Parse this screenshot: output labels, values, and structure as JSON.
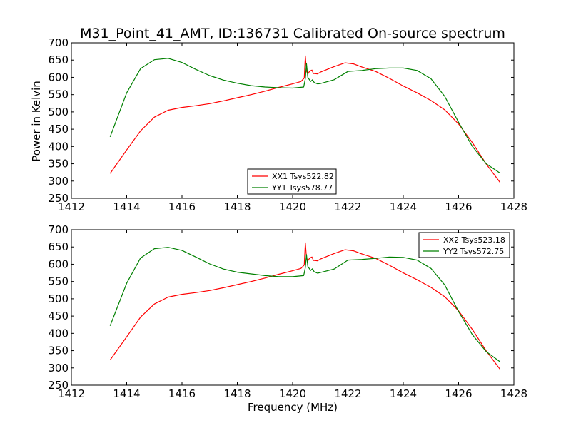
{
  "figure": {
    "title": "M31_Point_41_AMT, ID:136731 Calibrated On-source spectrum",
    "xlabel": "Frequency (MHz)",
    "ylabel": "Power in Kelvin"
  },
  "chart_data": [
    {
      "type": "line",
      "title": "M31_Point_41_AMT, ID:136731 Calibrated On-source spectrum",
      "xlabel": "",
      "ylabel": "Power in Kelvin",
      "xlim": [
        1412,
        1428
      ],
      "ylim": [
        250,
        700
      ],
      "xticks": [
        1412,
        1414,
        1416,
        1418,
        1420,
        1422,
        1424,
        1426,
        1428
      ],
      "yticks": [
        250,
        300,
        350,
        400,
        450,
        500,
        550,
        600,
        650,
        700
      ],
      "grid": false,
      "legend_position": "lower-center",
      "series": [
        {
          "name": "XX1 Tsys522.82",
          "color": "#ff0000",
          "x": [
            1413.4,
            1414.0,
            1414.5,
            1415.0,
            1415.5,
            1416.0,
            1416.5,
            1417.0,
            1417.5,
            1418.0,
            1418.5,
            1419.0,
            1419.5,
            1420.0,
            1420.3,
            1420.42,
            1420.46,
            1420.5,
            1420.55,
            1420.62,
            1420.7,
            1420.75,
            1420.8,
            1420.9,
            1421.0,
            1421.5,
            1421.9,
            1422.2,
            1422.5,
            1423.0,
            1423.5,
            1424.0,
            1424.5,
            1425.0,
            1425.5,
            1426.0,
            1426.5,
            1427.0,
            1427.5
          ],
          "y": [
            322,
            390,
            445,
            485,
            505,
            513,
            518,
            524,
            532,
            541,
            550,
            560,
            571,
            581,
            588,
            598,
            662,
            618,
            610,
            618,
            621,
            611,
            611,
            610,
            615,
            631,
            642,
            639,
            630,
            617,
            597,
            575,
            555,
            533,
            506,
            465,
            411,
            349,
            296
          ]
        },
        {
          "name": "YY1 Tsys578.77",
          "color": "#008000",
          "x": [
            1413.4,
            1414.0,
            1414.5,
            1415.0,
            1415.5,
            1416.0,
            1416.5,
            1417.0,
            1417.5,
            1418.0,
            1418.5,
            1419.0,
            1419.5,
            1420.0,
            1420.4,
            1420.46,
            1420.5,
            1420.55,
            1420.65,
            1420.72,
            1420.78,
            1420.9,
            1421.0,
            1421.5,
            1422.0,
            1422.5,
            1423.0,
            1423.5,
            1424.0,
            1424.5,
            1425.0,
            1425.5,
            1426.0,
            1426.5,
            1427.0,
            1427.5
          ],
          "y": [
            428,
            555,
            625,
            651,
            655,
            643,
            623,
            605,
            592,
            583,
            576,
            572,
            570,
            569,
            572,
            596,
            640,
            600,
            588,
            593,
            585,
            581,
            582,
            593,
            617,
            620,
            625,
            627,
            627,
            620,
            596,
            545,
            470,
            400,
            350,
            323
          ]
        }
      ]
    },
    {
      "type": "line",
      "title": "",
      "xlabel": "Frequency (MHz)",
      "ylabel": "",
      "xlim": [
        1412,
        1428
      ],
      "ylim": [
        250,
        700
      ],
      "xticks": [
        1412,
        1414,
        1416,
        1418,
        1420,
        1422,
        1424,
        1426,
        1428
      ],
      "yticks": [
        250,
        300,
        350,
        400,
        450,
        500,
        550,
        600,
        650,
        700
      ],
      "grid": false,
      "legend_position": "top-right",
      "series": [
        {
          "name": "XX2 Tsys523.18",
          "color": "#ff0000",
          "x": [
            1413.4,
            1414.0,
            1414.5,
            1415.0,
            1415.5,
            1416.0,
            1416.5,
            1417.0,
            1417.5,
            1418.0,
            1418.5,
            1419.0,
            1419.5,
            1420.0,
            1420.3,
            1420.42,
            1420.46,
            1420.5,
            1420.55,
            1420.62,
            1420.7,
            1420.75,
            1420.8,
            1420.9,
            1421.0,
            1421.5,
            1421.9,
            1422.2,
            1422.5,
            1423.0,
            1423.5,
            1424.0,
            1424.5,
            1425.0,
            1425.5,
            1426.0,
            1426.5,
            1427.0,
            1427.5
          ],
          "y": [
            323,
            390,
            447,
            485,
            505,
            513,
            518,
            524,
            532,
            541,
            550,
            560,
            571,
            581,
            588,
            598,
            662,
            618,
            610,
            618,
            621,
            611,
            611,
            610,
            615,
            631,
            642,
            639,
            630,
            617,
            597,
            575,
            555,
            533,
            506,
            465,
            411,
            349,
            296
          ]
        },
        {
          "name": "YY2 Tsys572.75",
          "color": "#008000",
          "x": [
            1413.4,
            1414.0,
            1414.5,
            1415.0,
            1415.5,
            1416.0,
            1416.5,
            1417.0,
            1417.5,
            1418.0,
            1418.5,
            1419.0,
            1419.5,
            1420.0,
            1420.4,
            1420.46,
            1420.5,
            1420.55,
            1420.65,
            1420.72,
            1420.78,
            1420.9,
            1421.0,
            1421.5,
            1422.0,
            1422.5,
            1423.0,
            1423.5,
            1424.0,
            1424.5,
            1425.0,
            1425.5,
            1426.0,
            1426.5,
            1427.0,
            1427.5
          ],
          "y": [
            422,
            545,
            618,
            645,
            649,
            640,
            621,
            601,
            586,
            577,
            572,
            567,
            564,
            564,
            567,
            590,
            628,
            594,
            582,
            587,
            578,
            574,
            576,
            586,
            612,
            614,
            617,
            621,
            620,
            612,
            588,
            540,
            463,
            396,
            347,
            318
          ]
        }
      ]
    }
  ]
}
